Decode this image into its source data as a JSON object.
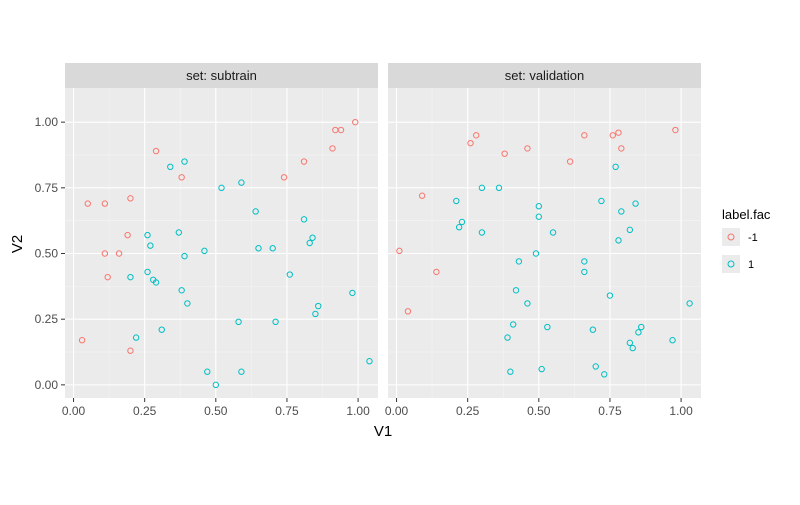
{
  "chart_data": {
    "type": "scatter",
    "xlabel": "V1",
    "ylabel": "V2",
    "xlim": [
      -0.03,
      1.07
    ],
    "ylim": [
      -0.05,
      1.13
    ],
    "xticks": [
      0.0,
      0.25,
      0.5,
      0.75,
      1.0
    ],
    "yticks": [
      0.0,
      0.25,
      0.5,
      0.75,
      1.0
    ],
    "xtick_labels": [
      "0.00",
      "0.25",
      "0.50",
      "0.75",
      "1.00"
    ],
    "ytick_labels": [
      "0.00",
      "0.25",
      "0.50",
      "0.75",
      "1.00"
    ],
    "grid": true,
    "legend": {
      "title": "label.fac",
      "placement": "right",
      "entries": [
        {
          "label": "-1",
          "color": "#F8766D"
        },
        {
          "label": "1",
          "color": "#00BFC4"
        }
      ]
    },
    "panels": [
      {
        "label": "set: subtrain",
        "series": [
          {
            "label": "-1",
            "color": "#F8766D",
            "points": [
              [
                0.03,
                0.17
              ],
              [
                0.05,
                0.69
              ],
              [
                0.11,
                0.69
              ],
              [
                0.11,
                0.5
              ],
              [
                0.12,
                0.41
              ],
              [
                0.16,
                0.5
              ],
              [
                0.19,
                0.57
              ],
              [
                0.2,
                0.71
              ],
              [
                0.2,
                0.13
              ],
              [
                0.29,
                0.89
              ],
              [
                0.38,
                0.79
              ],
              [
                0.74,
                0.79
              ],
              [
                0.81,
                0.85
              ],
              [
                0.91,
                0.9
              ],
              [
                0.92,
                0.97
              ],
              [
                0.94,
                0.97
              ],
              [
                0.99,
                1.0
              ]
            ]
          },
          {
            "label": "1",
            "color": "#00BFC4",
            "points": [
              [
                0.2,
                0.41
              ],
              [
                0.22,
                0.18
              ],
              [
                0.26,
                0.43
              ],
              [
                0.26,
                0.57
              ],
              [
                0.27,
                0.53
              ],
              [
                0.28,
                0.4
              ],
              [
                0.29,
                0.39
              ],
              [
                0.31,
                0.21
              ],
              [
                0.34,
                0.83
              ],
              [
                0.37,
                0.58
              ],
              [
                0.38,
                0.36
              ],
              [
                0.39,
                0.49
              ],
              [
                0.4,
                0.31
              ],
              [
                0.39,
                0.85
              ],
              [
                0.46,
                0.51
              ],
              [
                0.47,
                0.05
              ],
              [
                0.5,
                0.0
              ],
              [
                0.52,
                0.75
              ],
              [
                0.59,
                0.77
              ],
              [
                0.58,
                0.24
              ],
              [
                0.59,
                0.05
              ],
              [
                0.64,
                0.66
              ],
              [
                0.65,
                0.52
              ],
              [
                0.7,
                0.52
              ],
              [
                0.71,
                0.24
              ],
              [
                0.76,
                0.42
              ],
              [
                0.81,
                0.63
              ],
              [
                0.83,
                0.54
              ],
              [
                0.84,
                0.56
              ],
              [
                0.85,
                0.27
              ],
              [
                0.86,
                0.3
              ],
              [
                0.98,
                0.35
              ],
              [
                1.04,
                0.09
              ]
            ]
          }
        ]
      },
      {
        "label": "set: validation",
        "series": [
          {
            "label": "-1",
            "color": "#F8766D",
            "points": [
              [
                0.01,
                0.51
              ],
              [
                0.04,
                0.28
              ],
              [
                0.09,
                0.72
              ],
              [
                0.14,
                0.43
              ],
              [
                0.26,
                0.92
              ],
              [
                0.28,
                0.95
              ],
              [
                0.38,
                0.88
              ],
              [
                0.46,
                0.9
              ],
              [
                0.61,
                0.85
              ],
              [
                0.66,
                0.95
              ],
              [
                0.76,
                0.95
              ],
              [
                0.78,
                0.96
              ],
              [
                0.79,
                0.9
              ],
              [
                0.98,
                0.97
              ]
            ]
          },
          {
            "label": "1",
            "color": "#00BFC4",
            "points": [
              [
                0.21,
                0.7
              ],
              [
                0.22,
                0.6
              ],
              [
                0.23,
                0.62
              ],
              [
                0.3,
                0.75
              ],
              [
                0.3,
                0.58
              ],
              [
                0.36,
                0.75
              ],
              [
                0.39,
                0.18
              ],
              [
                0.4,
                0.05
              ],
              [
                0.41,
                0.23
              ],
              [
                0.42,
                0.36
              ],
              [
                0.43,
                0.47
              ],
              [
                0.46,
                0.31
              ],
              [
                0.49,
                0.5
              ],
              [
                0.5,
                0.68
              ],
              [
                0.5,
                0.64
              ],
              [
                0.51,
                0.06
              ],
              [
                0.53,
                0.22
              ],
              [
                0.55,
                0.58
              ],
              [
                0.66,
                0.47
              ],
              [
                0.66,
                0.43
              ],
              [
                0.69,
                0.21
              ],
              [
                0.7,
                0.07
              ],
              [
                0.72,
                0.7
              ],
              [
                0.73,
                0.04
              ],
              [
                0.75,
                0.34
              ],
              [
                0.77,
                0.83
              ],
              [
                0.78,
                0.55
              ],
              [
                0.79,
                0.66
              ],
              [
                0.82,
                0.59
              ],
              [
                0.82,
                0.16
              ],
              [
                0.83,
                0.14
              ],
              [
                0.84,
                0.69
              ],
              [
                0.85,
                0.2
              ],
              [
                0.86,
                0.22
              ],
              [
                0.97,
                0.17
              ],
              [
                1.03,
                0.31
              ]
            ]
          }
        ]
      }
    ]
  }
}
